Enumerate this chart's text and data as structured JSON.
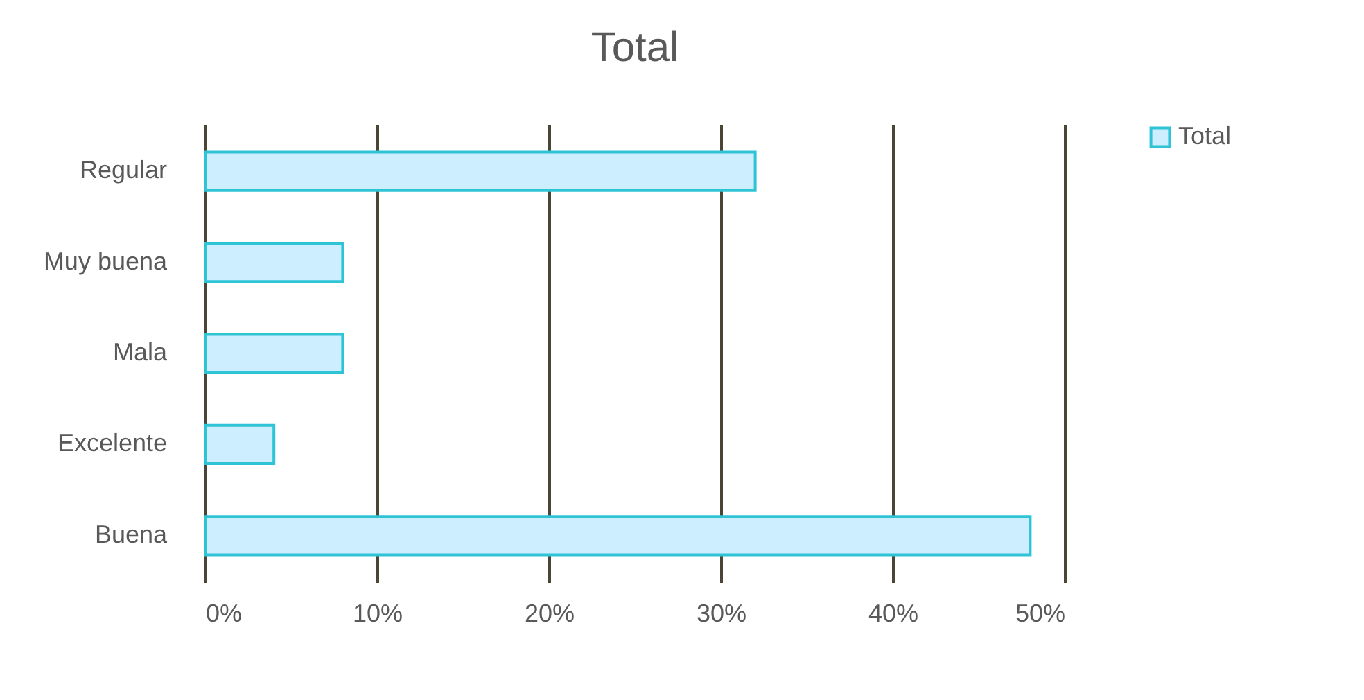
{
  "chart_data": {
    "type": "bar",
    "title": "Total",
    "orientation": "horizontal",
    "categories": [
      "Regular",
      "Muy buena",
      "Mala",
      "Excelente",
      "Buena"
    ],
    "series": [
      {
        "name": "Total",
        "color": "#cceeff",
        "values": [
          32,
          8,
          8,
          4,
          48
        ]
      }
    ],
    "xlim": [
      0,
      50
    ],
    "xticks": [
      {
        "value": 0,
        "label": "0%"
      },
      {
        "value": 10,
        "label": "10%"
      },
      {
        "value": 20,
        "label": "20%"
      },
      {
        "value": 30,
        "label": "30%"
      },
      {
        "value": 40,
        "label": "40%"
      },
      {
        "value": 50,
        "label": "50%"
      }
    ],
    "grid": "x",
    "legend": "right"
  }
}
